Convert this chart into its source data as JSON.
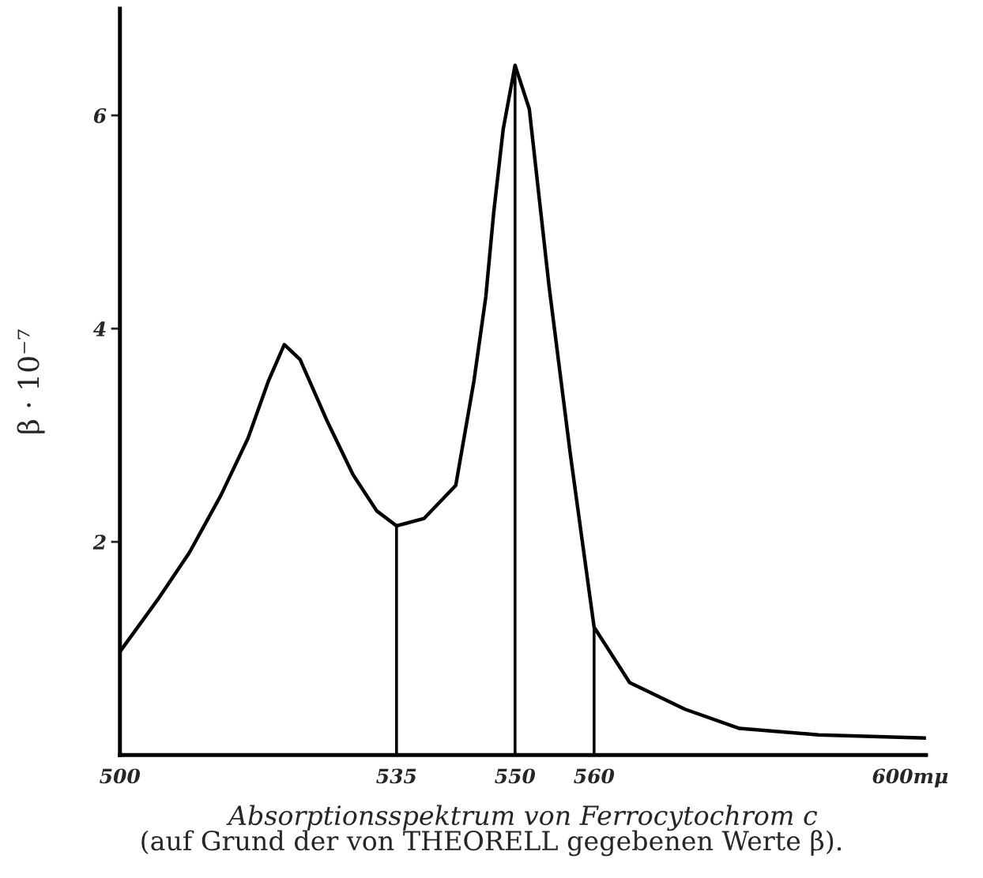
{
  "chart_data": {
    "type": "line",
    "xlabel": "Absorptionsspektrum von Ferrocytochrom c",
    "ylabel": "β · 10⁻⁷",
    "annotations": [
      "(auf Grund der von THEORELL gegebenen Werte β)."
    ],
    "series": [
      {
        "color": "#000000",
        "x": [
          500,
          504.8,
          508.8,
          512.8,
          516.2,
          518.8,
          520.8,
          522.8,
          526.3,
          529.5,
          532.5,
          535,
          538.5,
          542.5,
          544.8,
          546.3,
          547.3,
          548.5,
          550,
          551.8,
          554.3,
          557,
          560,
          564.5,
          571.5,
          578.4,
          588.4,
          602
        ],
        "values": [
          0.97,
          1.46,
          1.9,
          2.44,
          2.97,
          3.51,
          3.85,
          3.71,
          3.12,
          2.63,
          2.29,
          2.15,
          2.22,
          2.53,
          3.51,
          4.3,
          5.09,
          5.87,
          6.47,
          6.06,
          4.4,
          2.82,
          1.2,
          0.68,
          0.43,
          0.25,
          0.19,
          0.16
        ]
      }
    ],
    "ref_lines": [
      {
        "axis": "x",
        "value": 535
      },
      {
        "axis": "x",
        "value": 550
      },
      {
        "axis": "x",
        "value": 560
      }
    ],
    "xlim": [
      500,
      602
    ],
    "ylim": [
      0,
      7
    ],
    "xticks": [
      500,
      535,
      550,
      560,
      {
        "value": 600,
        "label": "600mμ"
      }
    ],
    "yticks": [
      2,
      4,
      6
    ],
    "grid": false,
    "legend": false,
    "marker": "none",
    "line_style": "solid"
  }
}
